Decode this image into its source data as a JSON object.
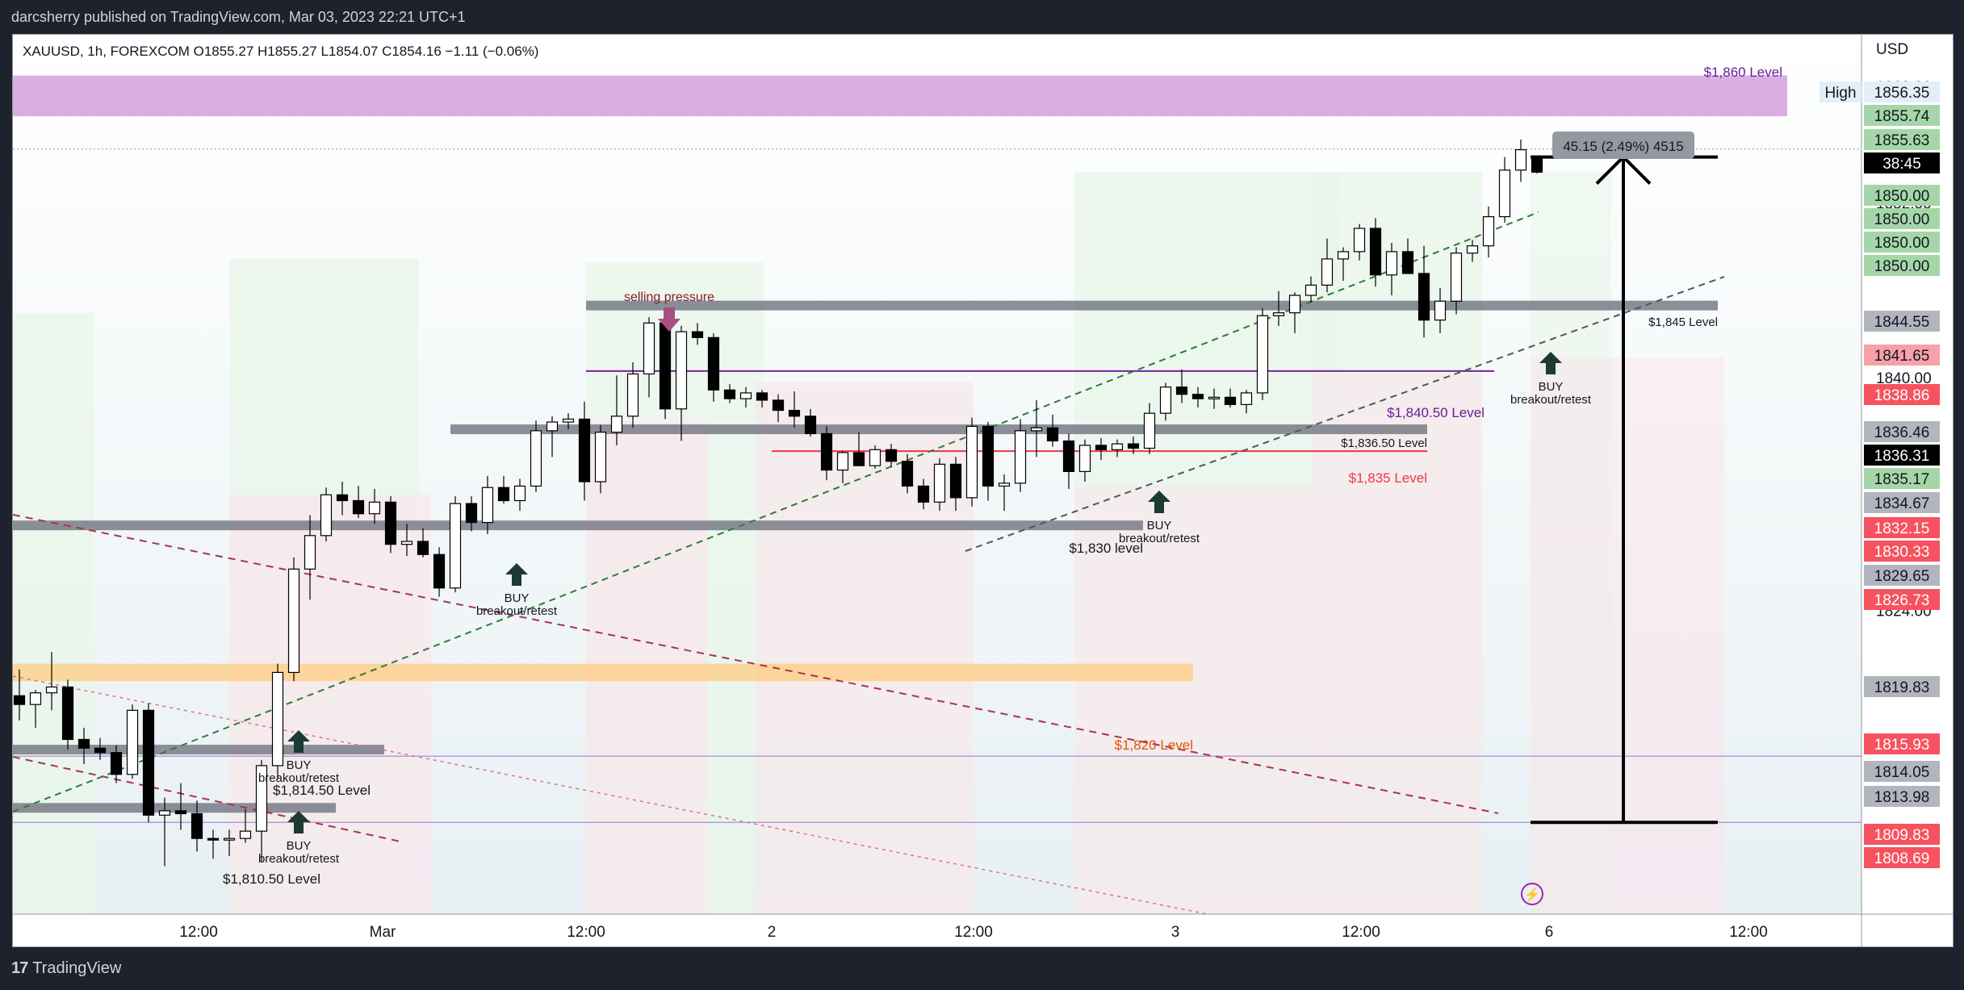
{
  "header": {
    "published": "darcsherry published on TradingView.com, Mar 03, 2023 22:21 UTC+1"
  },
  "footer": {
    "brand": "TradingView"
  },
  "chart_data": {
    "type": "candlestick",
    "symbol_line": "XAUUSD, 1h, FOREXCOM  O1855.27  H1855.27  L1854.07  C1854.16  −1.11 (−0.06%)",
    "currency": "USD",
    "y_ticks": [
      "1860.00",
      "1852.00",
      "1840.00",
      "1824.00"
    ],
    "ylim": [
      1803.2,
      1863.6
    ],
    "x_ticks": [
      "12:00",
      "Mar",
      "12:00",
      "2",
      "12:00",
      "3",
      "12:00",
      "6",
      "12:00"
    ],
    "candles": [
      {
        "o": 1818.2,
        "h": 1820.0,
        "l": 1816.5,
        "c": 1817.6
      },
      {
        "o": 1817.6,
        "h": 1818.6,
        "l": 1816.0,
        "c": 1818.4
      },
      {
        "o": 1818.4,
        "h": 1821.2,
        "l": 1817.2,
        "c": 1818.8
      },
      {
        "o": 1818.8,
        "h": 1819.3,
        "l": 1814.5,
        "c": 1815.2
      },
      {
        "o": 1815.2,
        "h": 1816.0,
        "l": 1813.5,
        "c": 1814.6
      },
      {
        "o": 1814.6,
        "h": 1815.3,
        "l": 1813.8,
        "c": 1814.3
      },
      {
        "o": 1814.3,
        "h": 1814.8,
        "l": 1812.2,
        "c": 1812.8
      },
      {
        "o": 1812.8,
        "h": 1817.6,
        "l": 1812.5,
        "c": 1817.2
      },
      {
        "o": 1817.2,
        "h": 1817.7,
        "l": 1809.5,
        "c": 1810.0
      },
      {
        "o": 1810.0,
        "h": 1811.2,
        "l": 1806.5,
        "c": 1810.3
      },
      {
        "o": 1810.3,
        "h": 1812.2,
        "l": 1809.0,
        "c": 1810.1
      },
      {
        "o": 1810.1,
        "h": 1811.0,
        "l": 1807.5,
        "c": 1808.4
      },
      {
        "o": 1808.4,
        "h": 1809.0,
        "l": 1807.0,
        "c": 1808.3
      },
      {
        "o": 1808.3,
        "h": 1809.0,
        "l": 1807.2,
        "c": 1808.4
      },
      {
        "o": 1808.4,
        "h": 1810.4,
        "l": 1808.1,
        "c": 1808.9
      },
      {
        "o": 1808.9,
        "h": 1813.8,
        "l": 1806.8,
        "c": 1813.4
      },
      {
        "o": 1813.4,
        "h": 1820.4,
        "l": 1812.5,
        "c": 1819.8
      },
      {
        "o": 1819.8,
        "h": 1827.7,
        "l": 1819.2,
        "c": 1826.9
      },
      {
        "o": 1826.9,
        "h": 1830.6,
        "l": 1824.8,
        "c": 1829.2
      },
      {
        "o": 1829.2,
        "h": 1832.5,
        "l": 1828.8,
        "c": 1832.0
      },
      {
        "o": 1832.0,
        "h": 1832.9,
        "l": 1830.6,
        "c": 1831.6
      },
      {
        "o": 1831.6,
        "h": 1832.6,
        "l": 1830.4,
        "c": 1830.7
      },
      {
        "o": 1830.7,
        "h": 1832.4,
        "l": 1830.0,
        "c": 1831.5
      },
      {
        "o": 1831.5,
        "h": 1831.9,
        "l": 1828.0,
        "c": 1828.6
      },
      {
        "o": 1828.6,
        "h": 1830.0,
        "l": 1827.8,
        "c": 1828.8
      },
      {
        "o": 1828.8,
        "h": 1829.7,
        "l": 1827.7,
        "c": 1827.9
      },
      {
        "o": 1827.9,
        "h": 1828.4,
        "l": 1825.0,
        "c": 1825.6
      },
      {
        "o": 1825.6,
        "h": 1831.9,
        "l": 1825.3,
        "c": 1831.4
      },
      {
        "o": 1831.4,
        "h": 1831.9,
        "l": 1829.5,
        "c": 1830.1
      },
      {
        "o": 1830.1,
        "h": 1833.3,
        "l": 1829.3,
        "c": 1832.5
      },
      {
        "o": 1832.5,
        "h": 1833.3,
        "l": 1831.4,
        "c": 1831.6
      },
      {
        "o": 1831.6,
        "h": 1833.1,
        "l": 1830.9,
        "c": 1832.6
      },
      {
        "o": 1832.6,
        "h": 1837.1,
        "l": 1832.2,
        "c": 1836.4
      },
      {
        "o": 1836.4,
        "h": 1837.4,
        "l": 1834.6,
        "c": 1837.0
      },
      {
        "o": 1837.0,
        "h": 1837.6,
        "l": 1836.5,
        "c": 1837.2
      },
      {
        "o": 1837.2,
        "h": 1838.4,
        "l": 1831.6,
        "c": 1832.9
      },
      {
        "o": 1832.9,
        "h": 1836.8,
        "l": 1832.1,
        "c": 1836.3
      },
      {
        "o": 1836.3,
        "h": 1840.2,
        "l": 1835.4,
        "c": 1837.4
      },
      {
        "o": 1837.4,
        "h": 1841.1,
        "l": 1836.6,
        "c": 1840.3
      },
      {
        "o": 1840.3,
        "h": 1844.2,
        "l": 1838.7,
        "c": 1843.8
      },
      {
        "o": 1843.8,
        "h": 1844.5,
        "l": 1837.2,
        "c": 1837.9
      },
      {
        "o": 1837.9,
        "h": 1843.6,
        "l": 1835.7,
        "c": 1843.2
      },
      {
        "o": 1843.2,
        "h": 1843.8,
        "l": 1842.3,
        "c": 1842.8
      },
      {
        "o": 1842.8,
        "h": 1843.1,
        "l": 1838.4,
        "c": 1839.2
      },
      {
        "o": 1839.2,
        "h": 1839.6,
        "l": 1838.3,
        "c": 1838.6
      },
      {
        "o": 1838.6,
        "h": 1839.4,
        "l": 1838.0,
        "c": 1839.0
      },
      {
        "o": 1839.0,
        "h": 1839.2,
        "l": 1838.0,
        "c": 1838.5
      },
      {
        "o": 1838.5,
        "h": 1838.9,
        "l": 1837.0,
        "c": 1837.8
      },
      {
        "o": 1837.8,
        "h": 1839.1,
        "l": 1836.6,
        "c": 1837.4
      },
      {
        "o": 1837.4,
        "h": 1837.9,
        "l": 1836.0,
        "c": 1836.2
      },
      {
        "o": 1836.2,
        "h": 1836.7,
        "l": 1833.0,
        "c": 1833.7
      },
      {
        "o": 1833.7,
        "h": 1835.0,
        "l": 1832.8,
        "c": 1834.9
      },
      {
        "o": 1834.9,
        "h": 1836.3,
        "l": 1834.4,
        "c": 1834.0
      },
      {
        "o": 1834.0,
        "h": 1835.4,
        "l": 1833.8,
        "c": 1835.1
      },
      {
        "o": 1835.1,
        "h": 1835.5,
        "l": 1833.9,
        "c": 1834.3
      },
      {
        "o": 1834.3,
        "h": 1834.8,
        "l": 1832.1,
        "c": 1832.6
      },
      {
        "o": 1832.6,
        "h": 1833.1,
        "l": 1831.0,
        "c": 1831.5
      },
      {
        "o": 1831.5,
        "h": 1834.5,
        "l": 1830.9,
        "c": 1834.1
      },
      {
        "o": 1834.1,
        "h": 1834.6,
        "l": 1830.9,
        "c": 1831.8
      },
      {
        "o": 1831.8,
        "h": 1837.3,
        "l": 1831.2,
        "c": 1836.7
      },
      {
        "o": 1836.7,
        "h": 1837.0,
        "l": 1831.6,
        "c": 1832.6
      },
      {
        "o": 1832.6,
        "h": 1833.4,
        "l": 1830.9,
        "c": 1832.8
      },
      {
        "o": 1832.8,
        "h": 1837.2,
        "l": 1832.2,
        "c": 1836.4
      },
      {
        "o": 1836.4,
        "h": 1838.5,
        "l": 1834.6,
        "c": 1836.6
      },
      {
        "o": 1836.6,
        "h": 1837.5,
        "l": 1835.3,
        "c": 1835.7
      },
      {
        "o": 1835.7,
        "h": 1836.2,
        "l": 1832.4,
        "c": 1833.6
      },
      {
        "o": 1833.6,
        "h": 1835.8,
        "l": 1832.9,
        "c": 1835.4
      },
      {
        "o": 1835.4,
        "h": 1835.9,
        "l": 1834.4,
        "c": 1835.1
      },
      {
        "o": 1835.1,
        "h": 1835.8,
        "l": 1834.6,
        "c": 1835.5
      },
      {
        "o": 1835.5,
        "h": 1836.0,
        "l": 1834.8,
        "c": 1835.2
      },
      {
        "o": 1835.2,
        "h": 1838.3,
        "l": 1834.8,
        "c": 1837.6
      },
      {
        "o": 1837.6,
        "h": 1839.7,
        "l": 1837.1,
        "c": 1839.4
      },
      {
        "o": 1839.4,
        "h": 1840.6,
        "l": 1838.3,
        "c": 1838.9
      },
      {
        "o": 1838.9,
        "h": 1839.4,
        "l": 1838.0,
        "c": 1838.6
      },
      {
        "o": 1838.6,
        "h": 1839.3,
        "l": 1837.9,
        "c": 1838.7
      },
      {
        "o": 1838.7,
        "h": 1839.3,
        "l": 1838.0,
        "c": 1838.2
      },
      {
        "o": 1838.2,
        "h": 1839.2,
        "l": 1837.6,
        "c": 1839.0
      },
      {
        "o": 1839.0,
        "h": 1844.8,
        "l": 1838.5,
        "c": 1844.3
      },
      {
        "o": 1844.3,
        "h": 1846.0,
        "l": 1843.6,
        "c": 1844.5
      },
      {
        "o": 1844.5,
        "h": 1845.9,
        "l": 1843.1,
        "c": 1845.7
      },
      {
        "o": 1845.7,
        "h": 1847.0,
        "l": 1845.2,
        "c": 1846.4
      },
      {
        "o": 1846.4,
        "h": 1849.6,
        "l": 1845.9,
        "c": 1848.2
      },
      {
        "o": 1848.2,
        "h": 1849.0,
        "l": 1846.7,
        "c": 1848.7
      },
      {
        "o": 1848.7,
        "h": 1850.6,
        "l": 1848.1,
        "c": 1850.3
      },
      {
        "o": 1850.3,
        "h": 1851.0,
        "l": 1846.3,
        "c": 1847.1
      },
      {
        "o": 1847.1,
        "h": 1849.3,
        "l": 1845.7,
        "c": 1848.7
      },
      {
        "o": 1848.7,
        "h": 1849.6,
        "l": 1847.7,
        "c": 1847.2
      },
      {
        "o": 1847.2,
        "h": 1849.1,
        "l": 1842.8,
        "c": 1844.0
      },
      {
        "o": 1844.0,
        "h": 1846.2,
        "l": 1843.1,
        "c": 1845.3
      },
      {
        "o": 1845.3,
        "h": 1849.0,
        "l": 1844.4,
        "c": 1848.6
      },
      {
        "o": 1848.6,
        "h": 1849.5,
        "l": 1848.0,
        "c": 1849.1
      },
      {
        "o": 1849.1,
        "h": 1851.8,
        "l": 1848.3,
        "c": 1851.1
      },
      {
        "o": 1851.1,
        "h": 1855.2,
        "l": 1850.7,
        "c": 1854.3
      },
      {
        "o": 1854.3,
        "h": 1856.4,
        "l": 1853.5,
        "c": 1855.7
      },
      {
        "o": 1855.27,
        "h": 1855.27,
        "l": 1854.07,
        "c": 1854.16
      }
    ],
    "price_tags": [
      {
        "label": "High",
        "value": "1856.35",
        "kind": "high"
      },
      {
        "label": "",
        "value": "1855.74",
        "kind": "green"
      },
      {
        "label": "",
        "value": "1855.63",
        "kind": "green"
      },
      {
        "label": "",
        "value": "38:45",
        "kind": "black"
      },
      {
        "label": "",
        "value": "1850.00",
        "kind": "green"
      },
      {
        "label": "",
        "value": "1850.00",
        "kind": "green"
      },
      {
        "label": "",
        "value": "1850.00",
        "kind": "green"
      },
      {
        "label": "",
        "value": "1850.00",
        "kind": "green"
      },
      {
        "label": "",
        "value": "1844.55",
        "kind": "gray"
      },
      {
        "label": "",
        "value": "1841.65",
        "kind": "pink"
      },
      {
        "label": "",
        "value": "1838.86",
        "kind": "red"
      },
      {
        "label": "",
        "value": "1836.46",
        "kind": "gray"
      },
      {
        "label": "",
        "value": "1836.31",
        "kind": "black"
      },
      {
        "label": "",
        "value": "1835.17",
        "kind": "green"
      },
      {
        "label": "",
        "value": "1834.67",
        "kind": "gray"
      },
      {
        "label": "",
        "value": "1832.15",
        "kind": "red"
      },
      {
        "label": "",
        "value": "1830.33",
        "kind": "red"
      },
      {
        "label": "",
        "value": "1829.65",
        "kind": "gray"
      },
      {
        "label": "",
        "value": "1826.73",
        "kind": "red"
      },
      {
        "label": "",
        "value": "1819.83",
        "kind": "gray"
      },
      {
        "label": "",
        "value": "1815.93",
        "kind": "red"
      },
      {
        "label": "",
        "value": "1814.05",
        "kind": "gray"
      },
      {
        "label": "",
        "value": "1813.98",
        "kind": "gray"
      },
      {
        "label": "",
        "value": "1809.83",
        "kind": "red"
      },
      {
        "label": "",
        "value": "1808.69",
        "kind": "red"
      }
    ],
    "annotations": {
      "level_1860": "$1,860 Level",
      "level_1845": "$1,845 Level",
      "level_184050": "$1,840.50 Level",
      "level_183650": "$1,836.50 Level",
      "level_1835": "$1,835 Level",
      "level_1830": "$1,830 level",
      "level_1820": "$1,820 Level",
      "level_181450": "$1,814.50 Level",
      "level_181050": "$1,810.50 Level",
      "selling_pressure": "selling pressure",
      "buy": "BUY",
      "breakout": "breakout/retest",
      "measure": "45.15 (2.49%) 4515"
    },
    "colors": {
      "up": "#ffffff",
      "down": "#000000",
      "green_tag": "#a5d6a7",
      "red_tag": "#f7525f",
      "purple_zone": "#ce93d8",
      "orange_zone": "#ffcc80"
    }
  }
}
